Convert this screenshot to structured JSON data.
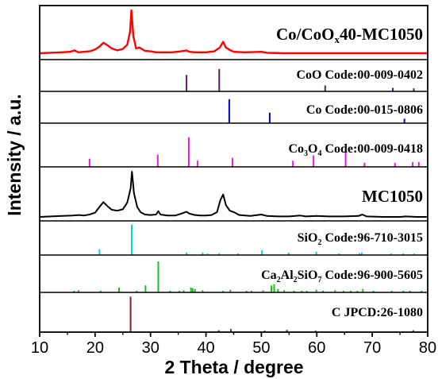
{
  "chart_data": {
    "type": "line",
    "xlabel": "2 Theta / degree",
    "ylabel": "Intensity / a.u.",
    "xlim": [
      10,
      80
    ],
    "xticks": [
      10,
      20,
      30,
      40,
      50,
      60,
      70,
      80
    ],
    "panels": [
      {
        "label_parts": [
          "Co/CoO",
          "x",
          "40-MC1050"
        ],
        "kind": "pattern",
        "color": "#ff0000",
        "points": [
          [
            10,
            0.1
          ],
          [
            12,
            0.11
          ],
          [
            14,
            0.12
          ],
          [
            15.5,
            0.13
          ],
          [
            16.3,
            0.16
          ],
          [
            17,
            0.12
          ],
          [
            18,
            0.13
          ],
          [
            19,
            0.14
          ],
          [
            20,
            0.18
          ],
          [
            20.8,
            0.24
          ],
          [
            21.5,
            0.32
          ],
          [
            22.2,
            0.27
          ],
          [
            23,
            0.2
          ],
          [
            24,
            0.16
          ],
          [
            25,
            0.19
          ],
          [
            25.8,
            0.28
          ],
          [
            26.3,
            0.55
          ],
          [
            26.55,
            1.0
          ],
          [
            26.9,
            0.45
          ],
          [
            27.4,
            0.2
          ],
          [
            28,
            0.22
          ],
          [
            29,
            0.15
          ],
          [
            30,
            0.14
          ],
          [
            31,
            0.12
          ],
          [
            32,
            0.12
          ],
          [
            34,
            0.12
          ],
          [
            35.5,
            0.14
          ],
          [
            36.5,
            0.16
          ],
          [
            37,
            0.13
          ],
          [
            38,
            0.12
          ],
          [
            40,
            0.12
          ],
          [
            41.5,
            0.14
          ],
          [
            42.5,
            0.22
          ],
          [
            43.1,
            0.34
          ],
          [
            43.6,
            0.22
          ],
          [
            44.3,
            0.17
          ],
          [
            45,
            0.13
          ],
          [
            47,
            0.12
          ],
          [
            50,
            0.13
          ],
          [
            51,
            0.11
          ],
          [
            54,
            0.1
          ],
          [
            58,
            0.1
          ],
          [
            62,
            0.1
          ],
          [
            66,
            0.1
          ],
          [
            70,
            0.1
          ],
          [
            74,
            0.1
          ],
          [
            77,
            0.1
          ],
          [
            80,
            0.1
          ]
        ]
      },
      {
        "label": "CoO Code:00-009-0402",
        "kind": "sticks",
        "color": "#5a1a6e",
        "sticks": [
          [
            36.5,
            0.55
          ],
          [
            42.4,
            0.75
          ],
          [
            61.5,
            0.2
          ],
          [
            73.7,
            0.12
          ],
          [
            77.5,
            0.1
          ]
        ]
      },
      {
        "label": "Co Code:00-015-0806",
        "kind": "sticks",
        "color": "#0000cc",
        "sticks": [
          [
            44.2,
            0.8
          ],
          [
            51.5,
            0.35
          ],
          [
            75.8,
            0.15
          ]
        ]
      },
      {
        "label_parts": [
          "Co",
          "3",
          "O",
          "4",
          " Code:00-009-0418"
        ],
        "kind": "sticks",
        "color": "#dd22dd",
        "sticks": [
          [
            19.0,
            0.2
          ],
          [
            31.3,
            0.3
          ],
          [
            36.9,
            0.72
          ],
          [
            38.5,
            0.15
          ],
          [
            44.8,
            0.22
          ],
          [
            55.7,
            0.15
          ],
          [
            59.4,
            0.28
          ],
          [
            65.2,
            0.4
          ],
          [
            68.6,
            0.1
          ],
          [
            74.1,
            0.1
          ],
          [
            77.3,
            0.12
          ],
          [
            78.4,
            0.12
          ]
        ]
      },
      {
        "label": "MC1050",
        "kind": "pattern",
        "color": "#000000",
        "points": [
          [
            10,
            0.05
          ],
          [
            12,
            0.06
          ],
          [
            14,
            0.07
          ],
          [
            16,
            0.08
          ],
          [
            17,
            0.09
          ],
          [
            18,
            0.08
          ],
          [
            19,
            0.1
          ],
          [
            20,
            0.14
          ],
          [
            20.8,
            0.26
          ],
          [
            21.5,
            0.36
          ],
          [
            22.2,
            0.28
          ],
          [
            23,
            0.2
          ],
          [
            24,
            0.18
          ],
          [
            25,
            0.21
          ],
          [
            25.8,
            0.35
          ],
          [
            26.4,
            0.65
          ],
          [
            26.65,
            1.0
          ],
          [
            27.0,
            0.55
          ],
          [
            27.6,
            0.26
          ],
          [
            28.2,
            0.15
          ],
          [
            29,
            0.1
          ],
          [
            30,
            0.09
          ],
          [
            31,
            0.1
          ],
          [
            31.4,
            0.17
          ],
          [
            31.8,
            0.1
          ],
          [
            33,
            0.08
          ],
          [
            34.5,
            0.08
          ],
          [
            35.6,
            0.12
          ],
          [
            36.5,
            0.16
          ],
          [
            37,
            0.12
          ],
          [
            38,
            0.09
          ],
          [
            39,
            0.08
          ],
          [
            40,
            0.08
          ],
          [
            41,
            0.09
          ],
          [
            42,
            0.15
          ],
          [
            42.6,
            0.4
          ],
          [
            43.1,
            0.52
          ],
          [
            43.6,
            0.3
          ],
          [
            44.3,
            0.18
          ],
          [
            45.2,
            0.14
          ],
          [
            46,
            0.09
          ],
          [
            48,
            0.07
          ],
          [
            50,
            0.1
          ],
          [
            51,
            0.07
          ],
          [
            53,
            0.06
          ],
          [
            55,
            0.06
          ],
          [
            57,
            0.08
          ],
          [
            58,
            0.06
          ],
          [
            60,
            0.07
          ],
          [
            62,
            0.06
          ],
          [
            65,
            0.06
          ],
          [
            67.5,
            0.07
          ],
          [
            68.2,
            0.1
          ],
          [
            69,
            0.06
          ],
          [
            72,
            0.05
          ],
          [
            75,
            0.05
          ],
          [
            76,
            0.06
          ],
          [
            78,
            0.05
          ],
          [
            80,
            0.05
          ]
        ]
      },
      {
        "label_parts": [
          "SiO",
          "2",
          " Code:96-710-3015"
        ],
        "kind": "sticks",
        "color": "#00d8d8",
        "sticks": [
          [
            20.8,
            0.18
          ],
          [
            26.6,
            0.95
          ],
          [
            36.5,
            0.08
          ],
          [
            39.4,
            0.08
          ],
          [
            40.3,
            0.05
          ],
          [
            42.4,
            0.06
          ],
          [
            45.8,
            0.05
          ],
          [
            50.1,
            0.15
          ],
          [
            54.9,
            0.08
          ],
          [
            59.9,
            0.1
          ],
          [
            64.0,
            0.05
          ],
          [
            67.7,
            0.06
          ],
          [
            68.1,
            0.08
          ],
          [
            73.4,
            0.05
          ],
          [
            75.6,
            0.05
          ],
          [
            77.6,
            0.05
          ],
          [
            79.9,
            0.04
          ]
        ]
      },
      {
        "label_parts": [
          "Ca",
          "2",
          "Al",
          "2",
          "SiO",
          "7",
          " Code:96-900-5605"
        ],
        "kind": "sticks",
        "color": "#22bb22",
        "sticks": [
          [
            16.2,
            0.05
          ],
          [
            17.0,
            0.06
          ],
          [
            21.0,
            0.05
          ],
          [
            24.3,
            0.14
          ],
          [
            27.5,
            0.05
          ],
          [
            29.1,
            0.2
          ],
          [
            31.4,
            0.88
          ],
          [
            33.5,
            0.05
          ],
          [
            35.2,
            0.04
          ],
          [
            36.0,
            0.06
          ],
          [
            37.3,
            0.14
          ],
          [
            37.6,
            0.12
          ],
          [
            38.0,
            0.1
          ],
          [
            39.4,
            0.06
          ],
          [
            43.1,
            0.05
          ],
          [
            44.4,
            0.08
          ],
          [
            47.3,
            0.05
          ],
          [
            48.2,
            0.05
          ],
          [
            50.3,
            0.06
          ],
          [
            51.8,
            0.2
          ],
          [
            52.3,
            0.23
          ],
          [
            53.0,
            0.1
          ],
          [
            54.1,
            0.06
          ],
          [
            55.9,
            0.05
          ],
          [
            57.3,
            0.05
          ],
          [
            58.2,
            0.05
          ],
          [
            59.9,
            0.08
          ],
          [
            61.1,
            0.05
          ],
          [
            63.3,
            0.06
          ],
          [
            64.8,
            0.05
          ],
          [
            66.1,
            0.05
          ],
          [
            67.3,
            0.05
          ],
          [
            68.3,
            0.1
          ],
          [
            70.2,
            0.05
          ],
          [
            73.5,
            0.05
          ],
          [
            75.6,
            0.05
          ],
          [
            76.8,
            0.05
          ],
          [
            78.9,
            0.05
          ]
        ]
      },
      {
        "label": "C JPCD:26-1080",
        "kind": "sticks",
        "color": "#8b1a1a",
        "sticks": [
          [
            26.4,
            0.95
          ],
          [
            42.3,
            0.05
          ],
          [
            44.5,
            0.08
          ],
          [
            50.6,
            0.04
          ],
          [
            54.6,
            0.06
          ],
          [
            59.8,
            0.04
          ],
          [
            77.4,
            0.05
          ]
        ]
      }
    ]
  }
}
